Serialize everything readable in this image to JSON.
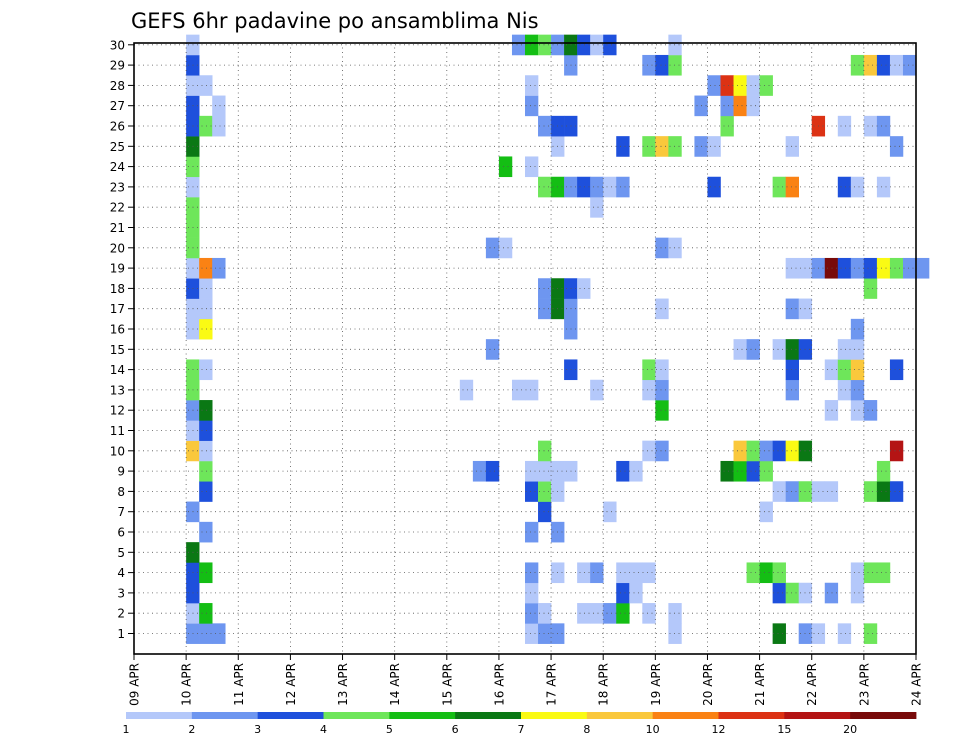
{
  "chart_data": {
    "type": "heatmap",
    "title": "GEFS 6hr padavine po ansamblima Nis",
    "y_categories": [
      "1",
      "2",
      "3",
      "4",
      "5",
      "6",
      "7",
      "8",
      "9",
      "10",
      "11",
      "12",
      "13",
      "14",
      "15",
      "16",
      "17",
      "18",
      "19",
      "20",
      "21",
      "22",
      "23",
      "24",
      "25",
      "26",
      "27",
      "28",
      "29",
      "30"
    ],
    "x_tick_labels": [
      "09 APR",
      "10 APR",
      "11 APR",
      "12 APR",
      "13 APR",
      "14 APR",
      "15 APR",
      "16 APR",
      "17 APR",
      "18 APR",
      "19 APR",
      "20 APR",
      "21 APR",
      "22 APR",
      "23 APR",
      "24 APR"
    ],
    "x_steps_per_day": 4,
    "x_first_step_offset": 4,
    "grid": true,
    "colorbar": {
      "bins": [
        {
          "color": "#b4c8fa",
          "label": "1"
        },
        {
          "color": "#6e96f0",
          "label": "2"
        },
        {
          "color": "#1e50dc",
          "label": "3"
        },
        {
          "color": "#6ee65a",
          "label": "4"
        },
        {
          "color": "#14be14",
          "label": "5"
        },
        {
          "color": "#0a7814",
          "label": "6"
        },
        {
          "color": "#fafa14",
          "label": "7"
        },
        {
          "color": "#fac83c",
          "label": "8"
        },
        {
          "color": "#fa8214",
          "label": "10"
        },
        {
          "color": "#dc3214",
          "label": "12"
        },
        {
          "color": "#b41414",
          "label": "15"
        },
        {
          "color": "#780a0a",
          "label": "20"
        }
      ]
    },
    "cells_format": "[member, step_index, color_bin_index]",
    "cells": [
      [
        1,
        4,
        1
      ],
      [
        1,
        5,
        1
      ],
      [
        1,
        6,
        1
      ],
      [
        1,
        30,
        0
      ],
      [
        1,
        31,
        1
      ],
      [
        1,
        32,
        1
      ],
      [
        1,
        41,
        0
      ],
      [
        1,
        49,
        5
      ],
      [
        1,
        51,
        1
      ],
      [
        1,
        52,
        0
      ],
      [
        1,
        54,
        0
      ],
      [
        1,
        56,
        3
      ],
      [
        2,
        4,
        0
      ],
      [
        2,
        5,
        4
      ],
      [
        2,
        30,
        1
      ],
      [
        2,
        31,
        0
      ],
      [
        2,
        34,
        0
      ],
      [
        2,
        35,
        0
      ],
      [
        2,
        36,
        1
      ],
      [
        2,
        37,
        4
      ],
      [
        2,
        39,
        0
      ],
      [
        2,
        41,
        0
      ],
      [
        3,
        4,
        2
      ],
      [
        3,
        30,
        0
      ],
      [
        3,
        37,
        2
      ],
      [
        3,
        38,
        0
      ],
      [
        3,
        49,
        2
      ],
      [
        3,
        50,
        3
      ],
      [
        3,
        51,
        0
      ],
      [
        3,
        53,
        1
      ],
      [
        3,
        55,
        0
      ],
      [
        4,
        4,
        2
      ],
      [
        4,
        5,
        4
      ],
      [
        4,
        30,
        1
      ],
      [
        4,
        32,
        0
      ],
      [
        4,
        34,
        0
      ],
      [
        4,
        35,
        1
      ],
      [
        4,
        37,
        0
      ],
      [
        4,
        38,
        0
      ],
      [
        4,
        39,
        0
      ],
      [
        4,
        47,
        3
      ],
      [
        4,
        48,
        4
      ],
      [
        4,
        49,
        3
      ],
      [
        4,
        55,
        0
      ],
      [
        4,
        56,
        3
      ],
      [
        4,
        57,
        3
      ],
      [
        5,
        4,
        5
      ],
      [
        6,
        5,
        1
      ],
      [
        6,
        30,
        1
      ],
      [
        6,
        32,
        1
      ],
      [
        7,
        4,
        1
      ],
      [
        7,
        31,
        2
      ],
      [
        7,
        36,
        0
      ],
      [
        7,
        48,
        0
      ],
      [
        8,
        5,
        2
      ],
      [
        8,
        30,
        2
      ],
      [
        8,
        31,
        3
      ],
      [
        8,
        32,
        0
      ],
      [
        8,
        49,
        0
      ],
      [
        8,
        50,
        1
      ],
      [
        8,
        51,
        3
      ],
      [
        8,
        52,
        0
      ],
      [
        8,
        53,
        0
      ],
      [
        8,
        56,
        3
      ],
      [
        8,
        57,
        5
      ],
      [
        8,
        58,
        2
      ],
      [
        9,
        5,
        3
      ],
      [
        9,
        26,
        1
      ],
      [
        9,
        27,
        2
      ],
      [
        9,
        30,
        0
      ],
      [
        9,
        31,
        0
      ],
      [
        9,
        32,
        0
      ],
      [
        9,
        33,
        0
      ],
      [
        9,
        37,
        2
      ],
      [
        9,
        38,
        0
      ],
      [
        9,
        45,
        5
      ],
      [
        9,
        46,
        4
      ],
      [
        9,
        47,
        2
      ],
      [
        9,
        48,
        3
      ],
      [
        9,
        57,
        3
      ],
      [
        10,
        4,
        7
      ],
      [
        10,
        5,
        0
      ],
      [
        10,
        31,
        3
      ],
      [
        10,
        39,
        0
      ],
      [
        10,
        40,
        1
      ],
      [
        10,
        46,
        7
      ],
      [
        10,
        47,
        3
      ],
      [
        10,
        48,
        1
      ],
      [
        10,
        49,
        2
      ],
      [
        10,
        50,
        6
      ],
      [
        10,
        51,
        5
      ],
      [
        10,
        58,
        10
      ],
      [
        11,
        4,
        0
      ],
      [
        11,
        5,
        2
      ],
      [
        12,
        4,
        1
      ],
      [
        12,
        5,
        5
      ],
      [
        12,
        40,
        4
      ],
      [
        12,
        53,
        0
      ],
      [
        12,
        55,
        0
      ],
      [
        12,
        56,
        1
      ],
      [
        13,
        4,
        3
      ],
      [
        13,
        25,
        0
      ],
      [
        13,
        29,
        0
      ],
      [
        13,
        30,
        0
      ],
      [
        13,
        35,
        0
      ],
      [
        13,
        39,
        0
      ],
      [
        13,
        40,
        1
      ],
      [
        13,
        50,
        1
      ],
      [
        13,
        54,
        0
      ],
      [
        13,
        55,
        1
      ],
      [
        14,
        4,
        3
      ],
      [
        14,
        5,
        0
      ],
      [
        14,
        33,
        2
      ],
      [
        14,
        39,
        3
      ],
      [
        14,
        40,
        0
      ],
      [
        14,
        50,
        2
      ],
      [
        14,
        53,
        0
      ],
      [
        14,
        54,
        3
      ],
      [
        14,
        55,
        7
      ],
      [
        14,
        58,
        2
      ],
      [
        15,
        27,
        1
      ],
      [
        15,
        46,
        0
      ],
      [
        15,
        47,
        1
      ],
      [
        15,
        49,
        0
      ],
      [
        15,
        50,
        5
      ],
      [
        15,
        51,
        2
      ],
      [
        15,
        54,
        0
      ],
      [
        15,
        55,
        0
      ],
      [
        16,
        4,
        0
      ],
      [
        16,
        5,
        6
      ],
      [
        16,
        33,
        1
      ],
      [
        16,
        55,
        1
      ],
      [
        17,
        4,
        0
      ],
      [
        17,
        5,
        0
      ],
      [
        17,
        31,
        1
      ],
      [
        17,
        32,
        5
      ],
      [
        17,
        33,
        1
      ],
      [
        17,
        40,
        0
      ],
      [
        17,
        50,
        1
      ],
      [
        17,
        51,
        0
      ],
      [
        18,
        4,
        2
      ],
      [
        18,
        5,
        0
      ],
      [
        18,
        31,
        1
      ],
      [
        18,
        32,
        5
      ],
      [
        18,
        33,
        2
      ],
      [
        18,
        34,
        0
      ],
      [
        18,
        56,
        3
      ],
      [
        19,
        4,
        0
      ],
      [
        19,
        5,
        8
      ],
      [
        19,
        6,
        1
      ],
      [
        19,
        50,
        0
      ],
      [
        19,
        51,
        0
      ],
      [
        19,
        52,
        1
      ],
      [
        19,
        53,
        11
      ],
      [
        19,
        54,
        2
      ],
      [
        19,
        55,
        1
      ],
      [
        19,
        56,
        2
      ],
      [
        19,
        57,
        6
      ],
      [
        19,
        58,
        3
      ],
      [
        19,
        59,
        1
      ],
      [
        19,
        60,
        1
      ],
      [
        20,
        4,
        3
      ],
      [
        20,
        27,
        1
      ],
      [
        20,
        28,
        0
      ],
      [
        20,
        40,
        1
      ],
      [
        20,
        41,
        0
      ],
      [
        21,
        4,
        3
      ],
      [
        22,
        4,
        3
      ],
      [
        22,
        35,
        0
      ],
      [
        23,
        4,
        0
      ],
      [
        23,
        31,
        3
      ],
      [
        23,
        32,
        4
      ],
      [
        23,
        33,
        1
      ],
      [
        23,
        34,
        2
      ],
      [
        23,
        35,
        1
      ],
      [
        23,
        36,
        0
      ],
      [
        23,
        37,
        1
      ],
      [
        23,
        44,
        2
      ],
      [
        23,
        49,
        3
      ],
      [
        23,
        50,
        8
      ],
      [
        23,
        54,
        2
      ],
      [
        23,
        55,
        0
      ],
      [
        23,
        57,
        0
      ],
      [
        24,
        4,
        3
      ],
      [
        24,
        28,
        4
      ],
      [
        24,
        30,
        0
      ],
      [
        25,
        4,
        5
      ],
      [
        25,
        32,
        0
      ],
      [
        25,
        37,
        2
      ],
      [
        25,
        39,
        3
      ],
      [
        25,
        40,
        7
      ],
      [
        25,
        41,
        3
      ],
      [
        25,
        43,
        1
      ],
      [
        25,
        44,
        0
      ],
      [
        25,
        50,
        0
      ],
      [
        25,
        58,
        1
      ],
      [
        26,
        4,
        2
      ],
      [
        26,
        5,
        3
      ],
      [
        26,
        6,
        0
      ],
      [
        26,
        31,
        1
      ],
      [
        26,
        32,
        2
      ],
      [
        26,
        33,
        2
      ],
      [
        26,
        45,
        3
      ],
      [
        26,
        52,
        9
      ],
      [
        26,
        54,
        0
      ],
      [
        26,
        56,
        0
      ],
      [
        26,
        57,
        1
      ],
      [
        27,
        4,
        2
      ],
      [
        27,
        6,
        0
      ],
      [
        27,
        30,
        1
      ],
      [
        27,
        43,
        1
      ],
      [
        27,
        45,
        1
      ],
      [
        27,
        46,
        8
      ],
      [
        27,
        47,
        0
      ],
      [
        28,
        4,
        0
      ],
      [
        28,
        5,
        0
      ],
      [
        28,
        30,
        0
      ],
      [
        28,
        44,
        1
      ],
      [
        28,
        45,
        9
      ],
      [
        28,
        46,
        6
      ],
      [
        28,
        47,
        0
      ],
      [
        28,
        48,
        3
      ],
      [
        29,
        4,
        2
      ],
      [
        29,
        33,
        1
      ],
      [
        29,
        39,
        1
      ],
      [
        29,
        40,
        2
      ],
      [
        29,
        41,
        3
      ],
      [
        29,
        55,
        3
      ],
      [
        29,
        56,
        7
      ],
      [
        29,
        57,
        2
      ],
      [
        29,
        58,
        0
      ],
      [
        29,
        59,
        1
      ],
      [
        30,
        4,
        0
      ],
      [
        30,
        29,
        1
      ],
      [
        30,
        30,
        4
      ],
      [
        30,
        31,
        3
      ],
      [
        30,
        32,
        1
      ],
      [
        30,
        33,
        5
      ],
      [
        30,
        34,
        2
      ],
      [
        30,
        35,
        0
      ],
      [
        30,
        36,
        2
      ],
      [
        30,
        41,
        0
      ]
    ]
  }
}
